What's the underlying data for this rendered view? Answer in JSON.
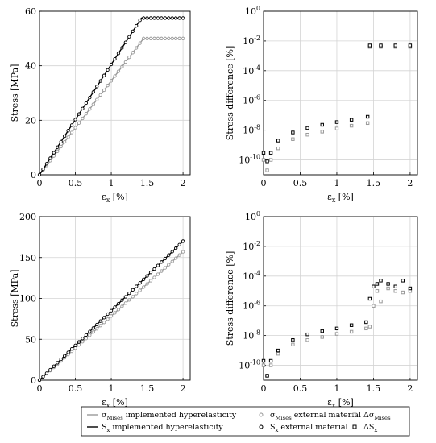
{
  "chart_data": [
    {
      "id": "top-left",
      "type": "line",
      "xlabel": "ε_x [%]",
      "ylabel": "Stress [MPa]",
      "xlim": [
        0,
        2.1
      ],
      "ylim": [
        0,
        60
      ],
      "xticks": [
        "0",
        "0.5",
        "1",
        "1.5",
        "2"
      ],
      "yticks": [
        "0",
        "20",
        "40",
        "60"
      ],
      "grid": true,
      "series": [
        {
          "name": "σ_Mises implemented hyperelasticity",
          "x": [
            0,
            1.45,
            2.0
          ],
          "y": [
            0,
            50,
            50
          ]
        },
        {
          "name": "σ_Mises external material",
          "x": [
            0,
            1.45,
            2.0
          ],
          "y": [
            0,
            50,
            50
          ]
        },
        {
          "name": "S_x implemented hyperelasticity",
          "x": [
            0,
            1.42,
            2.0
          ],
          "y": [
            0,
            57.5,
            57.5
          ]
        },
        {
          "name": "S_x external material",
          "x": [
            0,
            1.42,
            2.0
          ],
          "y": [
            0,
            57.5,
            57.5
          ]
        }
      ]
    },
    {
      "id": "top-right",
      "type": "scatter",
      "xlabel": "ε_x [%]",
      "ylabel": "Stress difference [%]",
      "xlim": [
        0,
        2.1
      ],
      "ylim": [
        1e-11,
        1
      ],
      "yscale": "log",
      "xticks": [
        "0",
        "0.5",
        "1",
        "1.5",
        "2"
      ],
      "yticks": [
        "10^{-10}",
        "10^{-8}",
        "10^{-6}",
        "10^{-4}",
        "10^{-2}",
        "10^{0}"
      ],
      "grid": true,
      "series": [
        {
          "name": "Δσ_Mises",
          "x": [
            0.0,
            0.05,
            0.1,
            0.2,
            0.4,
            0.6,
            0.8,
            1.0,
            1.2,
            1.42,
            1.45,
            1.6,
            1.8,
            2.0
          ],
          "y": [
            1e-10,
            2e-11,
            1e-10,
            6e-10,
            2.5e-09,
            5e-09,
            8e-09,
            1.3e-08,
            2e-08,
            3e-08,
            0.004,
            0.004,
            0.004,
            0.004
          ]
        },
        {
          "name": "ΔS_x",
          "x": [
            0.0,
            0.05,
            0.1,
            0.2,
            0.4,
            0.6,
            0.8,
            1.0,
            1.2,
            1.42,
            1.45,
            1.6,
            1.8,
            2.0
          ],
          "y": [
            3e-10,
            8e-11,
            3e-10,
            2e-09,
            7e-09,
            1.4e-08,
            2.3e-08,
            3.5e-08,
            5e-08,
            8e-08,
            0.005,
            0.005,
            0.005,
            0.005
          ]
        }
      ]
    },
    {
      "id": "bottom-left",
      "type": "line",
      "xlabel": "ε_x [%]",
      "ylabel": "Stress [MPa]",
      "xlim": [
        0,
        2.1
      ],
      "ylim": [
        0,
        200
      ],
      "xticks": [
        "0",
        "0.5",
        "1",
        "1.5",
        "2"
      ],
      "yticks": [
        "0",
        "50",
        "100",
        "150",
        "200"
      ],
      "grid": true,
      "series": [
        {
          "name": "σ_Mises implemented hyperelasticity",
          "x": [
            0,
            2.0
          ],
          "y": [
            0,
            157
          ]
        },
        {
          "name": "σ_Mises external material",
          "x": [
            0,
            2.0
          ],
          "y": [
            0,
            157
          ]
        },
        {
          "name": "S_x implemented hyperelasticity",
          "x": [
            0,
            2.0
          ],
          "y": [
            0,
            170
          ]
        },
        {
          "name": "S_x external material",
          "x": [
            0,
            2.0
          ],
          "y": [
            0,
            170
          ]
        }
      ]
    },
    {
      "id": "bottom-right",
      "type": "scatter",
      "xlabel": "ε_x [%]",
      "ylabel": "Stress difference [%]",
      "xlim": [
        0,
        2.1
      ],
      "ylim": [
        1e-11,
        1
      ],
      "yscale": "log",
      "xticks": [
        "0",
        "0.5",
        "1",
        "1.5",
        "2"
      ],
      "yticks": [
        "10^{-10}",
        "10^{-8}",
        "10^{-6}",
        "10^{-4}",
        "10^{-2}",
        "10^{0}"
      ],
      "grid": true,
      "series": [
        {
          "name": "Δσ_Mises",
          "x": [
            0.0,
            0.05,
            0.1,
            0.2,
            0.4,
            0.6,
            0.8,
            1.0,
            1.2,
            1.4,
            1.45,
            1.5,
            1.55,
            1.6,
            1.7,
            1.8,
            1.9,
            2.0
          ],
          "y": [
            1e-10,
            2e-11,
            1e-10,
            6e-10,
            2.5e-09,
            5e-09,
            8e-09,
            1.3e-08,
            1.8e-08,
            3e-08,
            4e-08,
            1e-06,
            1e-05,
            2e-06,
            1.5e-05,
            1e-05,
            8e-06,
            1e-05
          ]
        },
        {
          "name": "ΔS_x",
          "x": [
            0.0,
            0.05,
            0.1,
            0.2,
            0.4,
            0.6,
            0.8,
            1.0,
            1.2,
            1.4,
            1.45,
            1.5,
            1.55,
            1.6,
            1.7,
            1.8,
            1.9,
            2.0
          ],
          "y": [
            2e-10,
            2e-11,
            2e-10,
            1e-09,
            5e-09,
            1.2e-08,
            2e-08,
            3e-08,
            5e-08,
            8e-08,
            3e-06,
            2e-05,
            3e-05,
            5e-05,
            3e-05,
            2e-05,
            5e-05,
            1.5e-05
          ]
        }
      ]
    }
  ],
  "legend": {
    "items": [
      {
        "label": "σ_Mises implemented hyperelasticity",
        "marker": "line",
        "color": "#999999"
      },
      {
        "label": "σ_Mises external material",
        "marker": "circle",
        "color": "#999999"
      },
      {
        "label": "Δσ_Mises",
        "marker": "square",
        "color": "#999999"
      },
      {
        "label": "S_x implemented hyperelasticity",
        "marker": "line",
        "color": "#000000"
      },
      {
        "label": "S_x external material",
        "marker": "circle",
        "color": "#000000"
      },
      {
        "label": "ΔS_x",
        "marker": "square",
        "color": "#000000"
      }
    ]
  }
}
